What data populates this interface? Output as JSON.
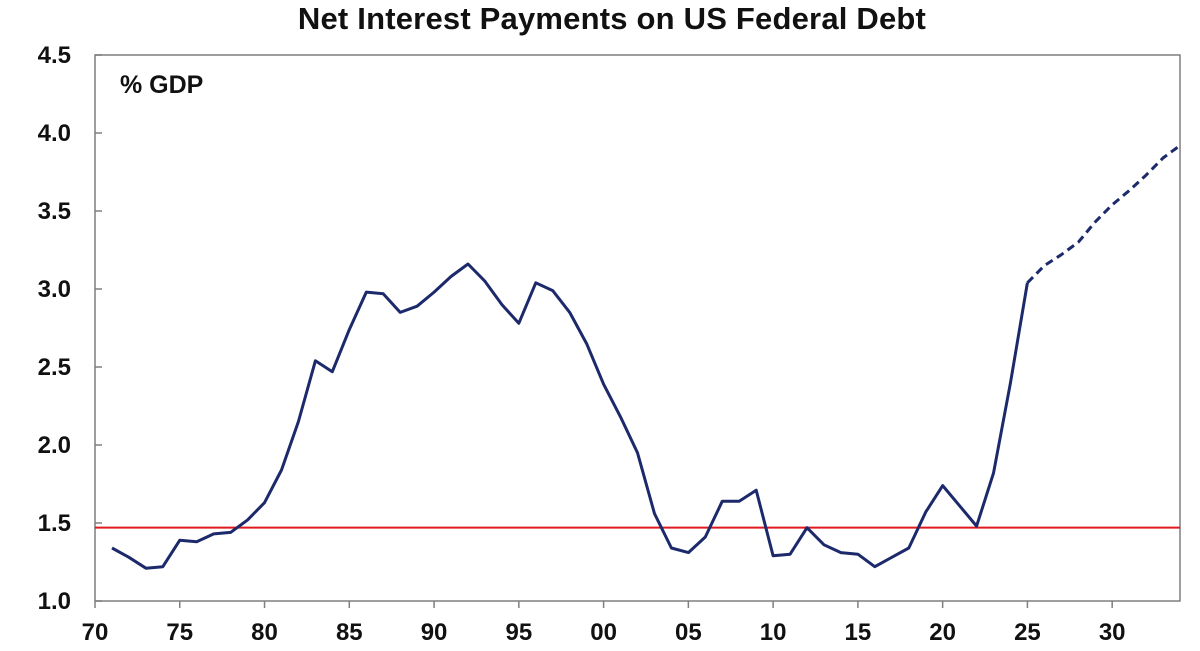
{
  "chart_data": {
    "type": "line",
    "title": "Net Interest Payments on US Federal Debt",
    "unit_label": "% GDP",
    "xlabel": "",
    "ylabel": "",
    "xlim": [
      1970,
      2034
    ],
    "ylim": [
      1.0,
      4.5
    ],
    "x_ticks": [
      {
        "x": 1970,
        "label": "70"
      },
      {
        "x": 1975,
        "label": "75"
      },
      {
        "x": 1980,
        "label": "80"
      },
      {
        "x": 1985,
        "label": "85"
      },
      {
        "x": 1990,
        "label": "90"
      },
      {
        "x": 1995,
        "label": "95"
      },
      {
        "x": 2000,
        "label": "00"
      },
      {
        "x": 2005,
        "label": "05"
      },
      {
        "x": 2010,
        "label": "10"
      },
      {
        "x": 2015,
        "label": "15"
      },
      {
        "x": 2020,
        "label": "20"
      },
      {
        "x": 2025,
        "label": "25"
      },
      {
        "x": 2030,
        "label": "30"
      }
    ],
    "y_ticks": [
      {
        "y": 1.0,
        "label": "1.0"
      },
      {
        "y": 1.5,
        "label": "1.5"
      },
      {
        "y": 2.0,
        "label": "2.0"
      },
      {
        "y": 2.5,
        "label": "2.5"
      },
      {
        "y": 3.0,
        "label": "3.0"
      },
      {
        "y": 3.5,
        "label": "3.5"
      },
      {
        "y": 4.0,
        "label": "4.0"
      },
      {
        "y": 4.5,
        "label": "4.5"
      }
    ],
    "grid": false,
    "legend": "none",
    "series": [
      {
        "style": "solid",
        "color": "#1c2a6b",
        "x": [
          1971,
          1972,
          1973,
          1974,
          1975,
          1976,
          1977,
          1978,
          1979,
          1980,
          1981,
          1982,
          1983,
          1984,
          1985,
          1986,
          1987,
          1988,
          1989,
          1990,
          1991,
          1992,
          1993,
          1994,
          1995,
          1996,
          1997,
          1998,
          1999,
          2000,
          2001,
          2002,
          2003,
          2004,
          2005,
          2006,
          2007,
          2008,
          2009,
          2010,
          2011,
          2012,
          2013,
          2014,
          2015,
          2016,
          2017,
          2018,
          2019,
          2020,
          2021,
          2022,
          2023,
          2024,
          2025
        ],
        "y": [
          1.34,
          1.28,
          1.21,
          1.22,
          1.39,
          1.38,
          1.43,
          1.44,
          1.52,
          1.63,
          1.84,
          2.15,
          2.54,
          2.47,
          2.74,
          2.98,
          2.97,
          2.85,
          2.89,
          2.98,
          3.08,
          3.16,
          3.05,
          2.9,
          2.78,
          3.04,
          2.99,
          2.85,
          2.65,
          2.39,
          2.18,
          1.95,
          1.56,
          1.34,
          1.31,
          1.41,
          1.64,
          1.64,
          1.71,
          1.29,
          1.3,
          1.47,
          1.36,
          1.31,
          1.3,
          1.22,
          1.28,
          1.34,
          1.57,
          1.74,
          1.61,
          1.48,
          1.82,
          2.4,
          3.04
        ]
      },
      {
        "style": "dashed",
        "color": "#1c2a6b",
        "x": [
          2025,
          2026,
          2027,
          2028,
          2029,
          2030,
          2031,
          2032,
          2033,
          2034
        ],
        "y": [
          3.04,
          3.15,
          3.22,
          3.3,
          3.43,
          3.54,
          3.63,
          3.73,
          3.84,
          3.92
        ]
      }
    ],
    "reference_lines": [
      {
        "y": 1.47,
        "color": "#e0191e"
      }
    ]
  }
}
